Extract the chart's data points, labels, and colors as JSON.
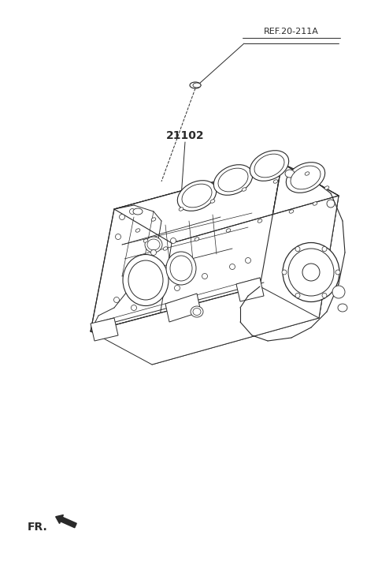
{
  "bg_color": "#ffffff",
  "line_color": "#2a2a2a",
  "label_ref": "REF.20-211A",
  "label_part": "21102",
  "label_fr": "FR.",
  "figsize": [
    4.8,
    7.16
  ],
  "dpi": 100
}
